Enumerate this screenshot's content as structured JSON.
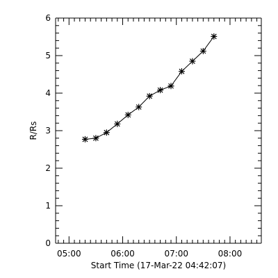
{
  "chart_data": {
    "type": "scatter",
    "title": "",
    "xlabel": "Start Time (17-Mar-22 04:42:07)",
    "ylabel": "R/Rs",
    "x_unit": "time of day",
    "y_unit": "R/Rs",
    "xlim": [
      "04:45",
      "08:35"
    ],
    "ylim": [
      0,
      6
    ],
    "x_ticks": [
      {
        "value": "05:00",
        "label": "05:00"
      },
      {
        "value": "06:00",
        "label": "06:00"
      },
      {
        "value": "07:00",
        "label": "07:00"
      },
      {
        "value": "08:00",
        "label": "08:00"
      }
    ],
    "y_ticks": [
      {
        "value": 0,
        "label": "0"
      },
      {
        "value": 1,
        "label": "1"
      },
      {
        "value": 2,
        "label": "2"
      },
      {
        "value": 3,
        "label": "3"
      },
      {
        "value": 4,
        "label": "4"
      },
      {
        "value": 5,
        "label": "5"
      },
      {
        "value": 6,
        "label": "6"
      }
    ],
    "grid": false,
    "legend": "none",
    "marker": "asterisk",
    "fit_line": true,
    "series": [
      {
        "points": [
          {
            "time": "05:18",
            "value": 2.77
          },
          {
            "time": "05:30",
            "value": 2.8
          },
          {
            "time": "05:42",
            "value": 2.95
          },
          {
            "time": "05:54",
            "value": 3.18
          },
          {
            "time": "06:06",
            "value": 3.42
          },
          {
            "time": "06:18",
            "value": 3.63
          },
          {
            "time": "06:30",
            "value": 3.92
          },
          {
            "time": "06:42",
            "value": 4.08
          },
          {
            "time": "06:54",
            "value": 4.19
          },
          {
            "time": "07:06",
            "value": 4.58
          },
          {
            "time": "07:18",
            "value": 4.85
          },
          {
            "time": "07:30",
            "value": 5.12
          },
          {
            "time": "07:42",
            "value": 5.51
          }
        ]
      }
    ]
  }
}
